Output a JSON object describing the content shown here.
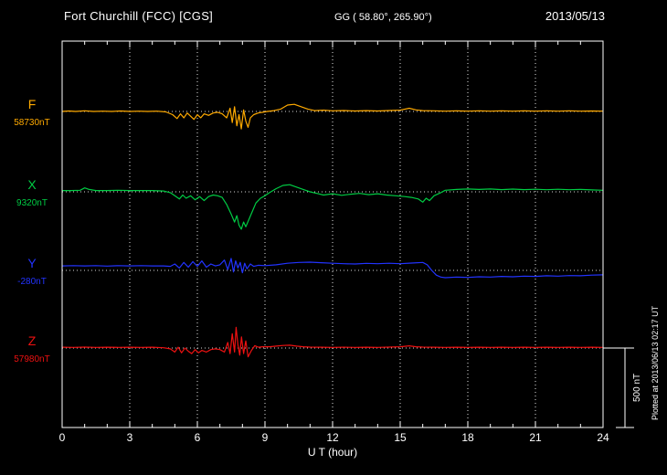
{
  "header": {
    "station": "Fort Churchill (FCC)  [CGS]",
    "coords": "GG ( 58.80°, 265.90°)",
    "date": "2013/05/13"
  },
  "xaxis": {
    "label": "U T (hour)",
    "tick_labels": [
      "0",
      "3",
      "6",
      "9",
      "12",
      "15",
      "18",
      "21",
      "24"
    ]
  },
  "scalebar": {
    "label": "500 nT",
    "value_nT": 500
  },
  "plot_note": "Plotted at 2013/06/13 02:17 UT",
  "colors": {
    "background": "#000000",
    "frame": "#ffffff",
    "text": "#ffffff",
    "grid": "#ffffff",
    "F": "#ffaa00",
    "X": "#00cc44",
    "Y": "#2233ff",
    "Z": "#ee1111"
  },
  "chart_data": {
    "type": "line",
    "title": "Fort Churchill (FCC) [CGS] magnetogram 2013/05/13",
    "xlabel": "U T (hour)",
    "x_range": [
      0,
      24
    ],
    "x_ticks": [
      0,
      3,
      6,
      9,
      12,
      15,
      18,
      21,
      24
    ],
    "grid": "vertical-dotted",
    "scale_nT_per_bar": 500,
    "series": [
      {
        "name": "F",
        "baseline_label": "58730nT",
        "baseline_nT": 58730,
        "color": "#ffaa00",
        "units": "nT offset from baseline",
        "points": [
          [
            0,
            0
          ],
          [
            0.3,
            3
          ],
          [
            0.6,
            0
          ],
          [
            1,
            4
          ],
          [
            1.4,
            0
          ],
          [
            1.8,
            2
          ],
          [
            2.2,
            0
          ],
          [
            2.6,
            3
          ],
          [
            3,
            0
          ],
          [
            3.4,
            2
          ],
          [
            3.8,
            0
          ],
          [
            4.2,
            2
          ],
          [
            4.6,
            -3
          ],
          [
            4.9,
            -20
          ],
          [
            5.1,
            -45
          ],
          [
            5.25,
            -15
          ],
          [
            5.4,
            -40
          ],
          [
            5.55,
            -10
          ],
          [
            5.7,
            -30
          ],
          [
            5.85,
            -50
          ],
          [
            6,
            -20
          ],
          [
            6.15,
            -40
          ],
          [
            6.3,
            -15
          ],
          [
            6.5,
            -25
          ],
          [
            6.7,
            -10
          ],
          [
            6.9,
            -5
          ],
          [
            7.1,
            -15
          ],
          [
            7.3,
            -40
          ],
          [
            7.45,
            20
          ],
          [
            7.55,
            -70
          ],
          [
            7.65,
            30
          ],
          [
            7.75,
            -90
          ],
          [
            7.85,
            -20
          ],
          [
            7.95,
            -110
          ],
          [
            8.05,
            10
          ],
          [
            8.15,
            -60
          ],
          [
            8.25,
            -100
          ],
          [
            8.35,
            -40
          ],
          [
            8.5,
            -20
          ],
          [
            8.7,
            -10
          ],
          [
            8.9,
            -5
          ],
          [
            9.1,
            0
          ],
          [
            9.4,
            5
          ],
          [
            9.7,
            15
          ],
          [
            10,
            40
          ],
          [
            10.3,
            45
          ],
          [
            10.6,
            30
          ],
          [
            10.9,
            15
          ],
          [
            11.2,
            5
          ],
          [
            11.6,
            8
          ],
          [
            12,
            4
          ],
          [
            12.5,
            6
          ],
          [
            13,
            3
          ],
          [
            13.5,
            5
          ],
          [
            14,
            3
          ],
          [
            14.5,
            6
          ],
          [
            15,
            8
          ],
          [
            15.4,
            20
          ],
          [
            15.7,
            10
          ],
          [
            16,
            5
          ],
          [
            16.5,
            4
          ],
          [
            17,
            2
          ],
          [
            17.5,
            4
          ],
          [
            18,
            2
          ],
          [
            18.5,
            4
          ],
          [
            19,
            2
          ],
          [
            19.5,
            4
          ],
          [
            20,
            2
          ],
          [
            20.5,
            4
          ],
          [
            21,
            2
          ],
          [
            21.5,
            4
          ],
          [
            22,
            2
          ],
          [
            22.5,
            4
          ],
          [
            23,
            2
          ],
          [
            23.5,
            3
          ],
          [
            24,
            2
          ]
        ]
      },
      {
        "name": "X",
        "baseline_label": "9320nT",
        "baseline_nT": 9320,
        "color": "#00cc44",
        "units": "nT offset from baseline",
        "points": [
          [
            0,
            8
          ],
          [
            0.4,
            8
          ],
          [
            0.8,
            10
          ],
          [
            1,
            25
          ],
          [
            1.2,
            15
          ],
          [
            1.5,
            8
          ],
          [
            2,
            8
          ],
          [
            2.5,
            10
          ],
          [
            3,
            8
          ],
          [
            3.5,
            8
          ],
          [
            4,
            8
          ],
          [
            4.5,
            5
          ],
          [
            4.8,
            -5
          ],
          [
            5,
            -25
          ],
          [
            5.2,
            -45
          ],
          [
            5.35,
            -20
          ],
          [
            5.5,
            -40
          ],
          [
            5.7,
            -25
          ],
          [
            5.9,
            -50
          ],
          [
            6.1,
            -30
          ],
          [
            6.3,
            -55
          ],
          [
            6.5,
            -30
          ],
          [
            6.7,
            -20
          ],
          [
            6.9,
            -25
          ],
          [
            7.1,
            -35
          ],
          [
            7.3,
            -80
          ],
          [
            7.5,
            -140
          ],
          [
            7.65,
            -190
          ],
          [
            7.75,
            -150
          ],
          [
            7.85,
            -210
          ],
          [
            7.95,
            -235
          ],
          [
            8.05,
            -190
          ],
          [
            8.15,
            -220
          ],
          [
            8.3,
            -170
          ],
          [
            8.45,
            -120
          ],
          [
            8.6,
            -70
          ],
          [
            8.8,
            -40
          ],
          [
            9,
            -25
          ],
          [
            9.2,
            -5
          ],
          [
            9.5,
            20
          ],
          [
            9.8,
            40
          ],
          [
            10.1,
            45
          ],
          [
            10.4,
            30
          ],
          [
            10.7,
            15
          ],
          [
            11,
            0
          ],
          [
            11.3,
            -10
          ],
          [
            11.6,
            -20
          ],
          [
            12,
            -12
          ],
          [
            12.4,
            -22
          ],
          [
            12.8,
            -15
          ],
          [
            13.2,
            -10
          ],
          [
            13.6,
            -18
          ],
          [
            14,
            -12
          ],
          [
            14.4,
            -20
          ],
          [
            14.8,
            -25
          ],
          [
            15.2,
            -30
          ],
          [
            15.5,
            -35
          ],
          [
            15.8,
            -45
          ],
          [
            16,
            -65
          ],
          [
            16.15,
            -40
          ],
          [
            16.3,
            -55
          ],
          [
            16.5,
            -25
          ],
          [
            16.8,
            -5
          ],
          [
            17,
            10
          ],
          [
            17.5,
            15
          ],
          [
            18,
            18
          ],
          [
            18.5,
            15
          ],
          [
            19,
            18
          ],
          [
            19.5,
            14
          ],
          [
            20,
            17
          ],
          [
            20.5,
            14
          ],
          [
            21,
            16
          ],
          [
            21.5,
            13
          ],
          [
            22,
            16
          ],
          [
            22.5,
            13
          ],
          [
            23,
            15
          ],
          [
            23.5,
            12
          ],
          [
            24,
            10
          ]
        ]
      },
      {
        "name": "Y",
        "baseline_label": "-280nT",
        "baseline_nT": -280,
        "color": "#2233ff",
        "units": "nT offset from baseline",
        "points": [
          [
            0,
            28
          ],
          [
            0.5,
            30
          ],
          [
            1,
            28
          ],
          [
            1.5,
            30
          ],
          [
            2,
            27
          ],
          [
            2.5,
            30
          ],
          [
            3,
            28
          ],
          [
            3.5,
            30
          ],
          [
            4,
            28
          ],
          [
            4.5,
            28
          ],
          [
            4.8,
            25
          ],
          [
            5,
            40
          ],
          [
            5.2,
            15
          ],
          [
            5.4,
            50
          ],
          [
            5.6,
            20
          ],
          [
            5.8,
            55
          ],
          [
            6,
            25
          ],
          [
            6.2,
            60
          ],
          [
            6.4,
            20
          ],
          [
            6.6,
            40
          ],
          [
            6.8,
            28
          ],
          [
            7,
            35
          ],
          [
            7.2,
            65
          ],
          [
            7.35,
            5
          ],
          [
            7.5,
            75
          ],
          [
            7.6,
            -10
          ],
          [
            7.7,
            60
          ],
          [
            7.8,
            15
          ],
          [
            7.9,
            50
          ],
          [
            8,
            -15
          ],
          [
            8.1,
            45
          ],
          [
            8.2,
            10
          ],
          [
            8.35,
            40
          ],
          [
            8.5,
            25
          ],
          [
            8.7,
            32
          ],
          [
            9,
            30
          ],
          [
            9.5,
            35
          ],
          [
            10,
            45
          ],
          [
            10.5,
            50
          ],
          [
            11,
            52
          ],
          [
            11.5,
            48
          ],
          [
            12,
            45
          ],
          [
            12.5,
            42
          ],
          [
            13,
            40
          ],
          [
            13.5,
            44
          ],
          [
            14,
            42
          ],
          [
            14.5,
            45
          ],
          [
            15,
            42
          ],
          [
            15.5,
            46
          ],
          [
            16,
            50
          ],
          [
            16.2,
            35
          ],
          [
            16.4,
            0
          ],
          [
            16.6,
            -30
          ],
          [
            16.8,
            -42
          ],
          [
            17,
            -46
          ],
          [
            17.5,
            -42
          ],
          [
            18,
            -44
          ],
          [
            18.5,
            -40
          ],
          [
            19,
            -42
          ],
          [
            19.5,
            -38
          ],
          [
            20,
            -40
          ],
          [
            20.5,
            -36
          ],
          [
            21,
            -38
          ],
          [
            21.5,
            -34
          ],
          [
            22,
            -36
          ],
          [
            22.5,
            -33
          ],
          [
            23,
            -34
          ],
          [
            23.5,
            -30
          ],
          [
            24,
            -28
          ]
        ]
      },
      {
        "name": "Z",
        "baseline_label": "57980nT",
        "baseline_nT": 57980,
        "color": "#ee1111",
        "units": "nT offset from baseline",
        "points": [
          [
            0,
            5
          ],
          [
            0.5,
            4
          ],
          [
            1,
            6
          ],
          [
            1.5,
            4
          ],
          [
            2,
            5
          ],
          [
            2.5,
            4
          ],
          [
            3,
            5
          ],
          [
            3.5,
            4
          ],
          [
            4,
            5
          ],
          [
            4.5,
            2
          ],
          [
            4.8,
            -5
          ],
          [
            5,
            -25
          ],
          [
            5.15,
            5
          ],
          [
            5.3,
            -30
          ],
          [
            5.45,
            0
          ],
          [
            5.6,
            -20
          ],
          [
            5.75,
            -35
          ],
          [
            5.9,
            -10
          ],
          [
            6.05,
            -30
          ],
          [
            6.2,
            -15
          ],
          [
            6.4,
            -25
          ],
          [
            6.6,
            -10
          ],
          [
            6.8,
            -5
          ],
          [
            7,
            -10
          ],
          [
            7.2,
            -25
          ],
          [
            7.35,
            35
          ],
          [
            7.45,
            -35
          ],
          [
            7.55,
            90
          ],
          [
            7.65,
            -25
          ],
          [
            7.72,
            130
          ],
          [
            7.8,
            20
          ],
          [
            7.88,
            -45
          ],
          [
            7.96,
            70
          ],
          [
            8.05,
            -35
          ],
          [
            8.15,
            45
          ],
          [
            8.25,
            -55
          ],
          [
            8.4,
            -15
          ],
          [
            8.55,
            15
          ],
          [
            8.7,
            5
          ],
          [
            8.9,
            8
          ],
          [
            9.2,
            8
          ],
          [
            9.5,
            12
          ],
          [
            9.8,
            16
          ],
          [
            10.1,
            18
          ],
          [
            10.4,
            12
          ],
          [
            10.7,
            8
          ],
          [
            11,
            6
          ],
          [
            11.5,
            5
          ],
          [
            12,
            4
          ],
          [
            12.5,
            5
          ],
          [
            13,
            4
          ],
          [
            13.5,
            5
          ],
          [
            14,
            4
          ],
          [
            14.5,
            6
          ],
          [
            15,
            8
          ],
          [
            15.4,
            14
          ],
          [
            15.7,
            8
          ],
          [
            16,
            6
          ],
          [
            16.5,
            5
          ],
          [
            17,
            4
          ],
          [
            17.5,
            5
          ],
          [
            18,
            4
          ],
          [
            18.5,
            5
          ],
          [
            19,
            4
          ],
          [
            19.5,
            5
          ],
          [
            20,
            4
          ],
          [
            20.5,
            5
          ],
          [
            21,
            4
          ],
          [
            21.5,
            5
          ],
          [
            22,
            4
          ],
          [
            22.5,
            5
          ],
          [
            23,
            4
          ],
          [
            23.5,
            5
          ],
          [
            24,
            4
          ]
        ]
      }
    ]
  }
}
